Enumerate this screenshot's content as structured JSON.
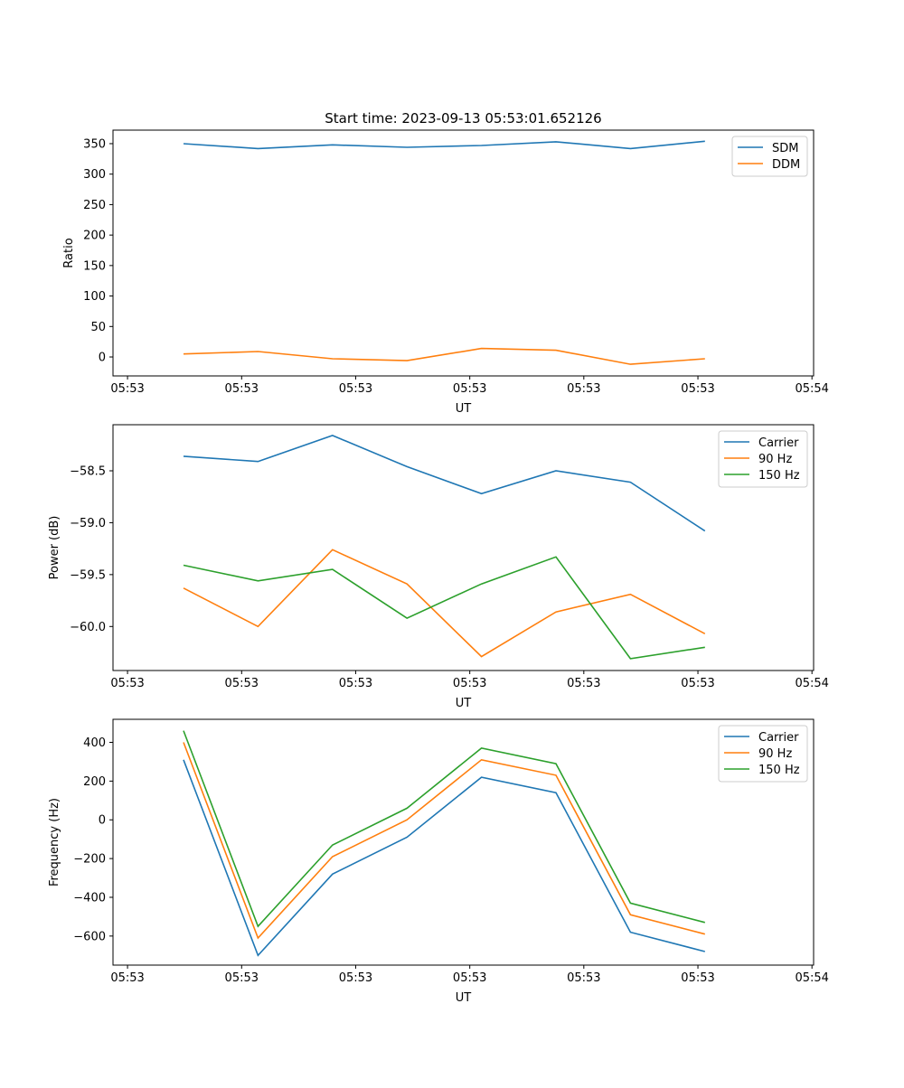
{
  "chart_data": [
    {
      "type": "line",
      "title": "Start time: 2023-09-13 05:53:01.652126",
      "xlabel": "UT",
      "ylabel": "Ratio",
      "x": [
        0,
        1,
        2,
        3,
        4,
        5,
        6,
        7
      ],
      "xlim": [
        -0.947,
        8.459
      ],
      "xticks": [
        -0.752,
        0.78,
        2.311,
        3.843,
        5.374,
        6.906,
        8.437
      ],
      "xtick_labels": [
        "05:53",
        "05:53",
        "05:53",
        "05:53",
        "05:53",
        "05:53",
        "05:54"
      ],
      "ylim": [
        -31.1,
        372.2
      ],
      "yticks": [
        0,
        50,
        100,
        150,
        200,
        250,
        300,
        350
      ],
      "ytick_labels": [
        "0",
        "50",
        "100",
        "150",
        "200",
        "250",
        "300",
        "350"
      ],
      "legend": "top-right",
      "series": [
        {
          "name": "SDM",
          "color": "#1f77b4",
          "values": [
            350,
            342,
            348,
            344,
            347,
            353,
            342,
            354
          ]
        },
        {
          "name": "DDM",
          "color": "#ff7f0e",
          "values": [
            5,
            9,
            -3,
            -6,
            14,
            11,
            -12,
            -3
          ]
        }
      ]
    },
    {
      "type": "line",
      "title": "",
      "xlabel": "UT",
      "ylabel": "Power (dB)",
      "x": [
        0,
        1,
        2,
        3,
        4,
        5,
        6,
        7
      ],
      "xlim": [
        -0.947,
        8.459
      ],
      "xticks": [
        -0.752,
        0.78,
        2.311,
        3.843,
        5.374,
        6.906,
        8.437
      ],
      "xtick_labels": [
        "05:53",
        "05:53",
        "05:53",
        "05:53",
        "05:53",
        "05:53",
        "05:54"
      ],
      "ylim": [
        -60.424,
        -58.056
      ],
      "yticks": [
        -58.5,
        -59.0,
        -59.5,
        -60.0
      ],
      "ytick_labels": [
        "−58.5",
        "−59.0",
        "−59.5",
        "−60.0"
      ],
      "legend": "top-right",
      "series": [
        {
          "name": "Carrier",
          "color": "#1f77b4",
          "values": [
            -58.36,
            -58.41,
            -58.16,
            -58.46,
            -58.72,
            -58.5,
            -58.61,
            -59.08
          ]
        },
        {
          "name": "90 Hz",
          "color": "#ff7f0e",
          "values": [
            -59.63,
            -60.0,
            -59.26,
            -59.59,
            -60.29,
            -59.86,
            -59.69,
            -60.07
          ]
        },
        {
          "name": "150 Hz",
          "color": "#2ca02c",
          "values": [
            -59.41,
            -59.56,
            -59.45,
            -59.92,
            -59.59,
            -59.33,
            -60.31,
            -60.2
          ]
        }
      ]
    },
    {
      "type": "line",
      "title": "",
      "xlabel": "UT",
      "ylabel": "Frequency (Hz)",
      "x": [
        0,
        1,
        2,
        3,
        4,
        5,
        6,
        7
      ],
      "xlim": [
        -0.947,
        8.459
      ],
      "xticks": [
        -0.752,
        0.78,
        2.311,
        3.843,
        5.374,
        6.906,
        8.437
      ],
      "xtick_labels": [
        "05:53",
        "05:53",
        "05:53",
        "05:53",
        "05:53",
        "05:53",
        "05:54"
      ],
      "ylim": [
        -750,
        519
      ],
      "yticks": [
        400,
        200,
        0,
        -200,
        -400,
        -600
      ],
      "ytick_labels": [
        "400",
        "200",
        "0",
        "−200",
        "−400",
        "−600"
      ],
      "legend": "top-right",
      "series": [
        {
          "name": "Carrier",
          "color": "#1f77b4",
          "values": [
            310,
            -700,
            -280,
            -90,
            220,
            140,
            -580,
            -680
          ]
        },
        {
          "name": "90 Hz",
          "color": "#ff7f0e",
          "values": [
            400,
            -610,
            -190,
            0,
            310,
            230,
            -490,
            -590
          ]
        },
        {
          "name": "150 Hz",
          "color": "#2ca02c",
          "values": [
            460,
            -550,
            -130,
            60,
            370,
            290,
            -430,
            -530
          ]
        }
      ]
    }
  ]
}
